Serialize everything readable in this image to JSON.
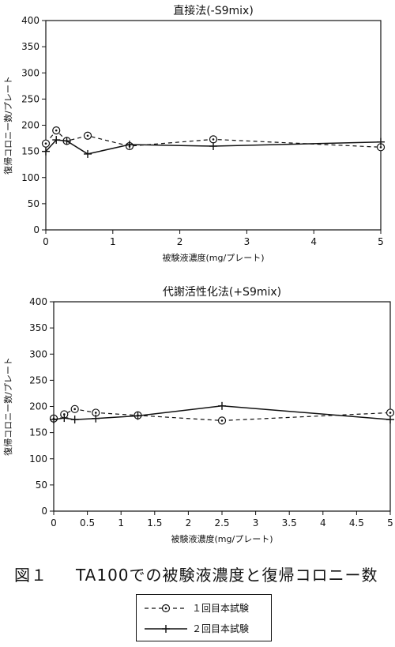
{
  "chart_data": [
    {
      "type": "line",
      "title": "直接法(-S9mix)",
      "xlabel": "被験液濃度(mg/プレート)",
      "ylabel": "復帰コロニー数/プレート",
      "xlim": [
        0,
        5
      ],
      "ylim": [
        0,
        400
      ],
      "xticks": [
        0,
        1,
        2,
        3,
        4,
        5
      ],
      "xtick_labels": [
        "0",
        "1",
        "2",
        "3",
        "4",
        "5"
      ],
      "yticks": [
        0,
        50,
        100,
        150,
        200,
        250,
        300,
        350,
        400
      ],
      "ytick_labels": [
        "0",
        "50",
        "100",
        "150",
        "200",
        "250",
        "300",
        "350",
        "400"
      ],
      "grid": false,
      "series": [
        {
          "name": "1回目本試験",
          "style": "dashed",
          "marker": "circle-dot",
          "x": [
            0,
            0.156,
            0.313,
            0.625,
            1.25,
            2.5,
            5
          ],
          "y": [
            165,
            190,
            170,
            180,
            160,
            173,
            158
          ]
        },
        {
          "name": "2回目本試験",
          "style": "solid",
          "marker": "plus",
          "x": [
            0,
            0.156,
            0.313,
            0.625,
            1.25,
            2.5,
            5
          ],
          "y": [
            150,
            172,
            170,
            145,
            163,
            160,
            168
          ]
        }
      ]
    },
    {
      "type": "line",
      "title": "代謝活性化法(+S9mix)",
      "xlabel": "被験液濃度(mg/プレート)",
      "ylabel": "復帰コロニー数/プレート",
      "xlim": [
        0,
        5
      ],
      "ylim": [
        0,
        400
      ],
      "xticks": [
        0,
        0.5,
        1,
        1.5,
        2,
        2.5,
        3,
        3.5,
        4,
        4.5,
        5
      ],
      "xtick_labels": [
        "0",
        "0.5",
        "1",
        "1.5",
        "2",
        "2.5",
        "3",
        "3.5",
        "4",
        "4.5",
        "5"
      ],
      "yticks": [
        0,
        50,
        100,
        150,
        200,
        250,
        300,
        350,
        400
      ],
      "ytick_labels": [
        "0",
        "50",
        "100",
        "150",
        "200",
        "250",
        "300",
        "350",
        "400"
      ],
      "grid": false,
      "series": [
        {
          "name": "1回目本試験",
          "style": "dashed",
          "marker": "circle-dot",
          "x": [
            0,
            0.156,
            0.313,
            0.625,
            1.25,
            2.5,
            5
          ],
          "y": [
            177,
            185,
            195,
            188,
            183,
            173,
            188
          ]
        },
        {
          "name": "2回目本試験",
          "style": "solid",
          "marker": "plus",
          "x": [
            0,
            0.156,
            0.313,
            0.625,
            1.25,
            2.5,
            5
          ],
          "y": [
            175,
            178,
            175,
            177,
            182,
            201,
            175
          ]
        }
      ]
    }
  ],
  "caption": {
    "figure_label": "図１",
    "text": "TA100での被験液濃度と復帰コロニー数"
  },
  "legend": {
    "items": [
      {
        "dash": "- ⊙ -",
        "label": "１回目本試験",
        "style": "dashed",
        "marker": "circle-dot"
      },
      {
        "label": "２回目本試験",
        "style": "solid",
        "marker": "plus"
      }
    ]
  }
}
